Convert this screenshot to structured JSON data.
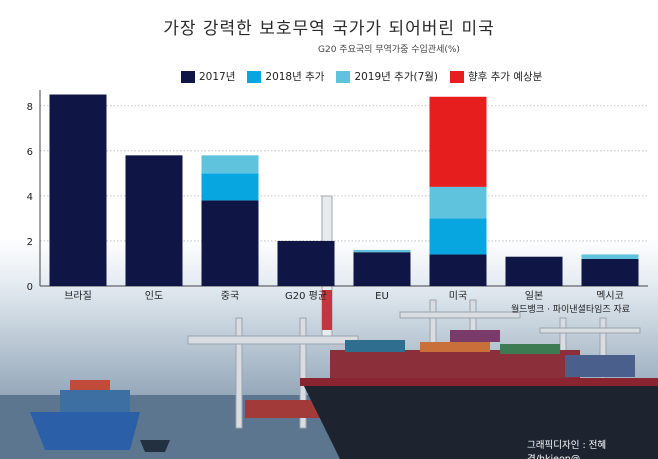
{
  "header": {
    "title": "가장 강력한 보호무역 국가가 되어버린 미국",
    "subtitle": "G20 주요국의 무역가중 수입관세(%)"
  },
  "footer": {
    "source": "월드뱅크 · 파이낸셜타임즈 자료",
    "credit": "그래픽디자인 : 전혜경/hkjeon@"
  },
  "colors": {
    "y2017": "#0f1646",
    "y2018": "#08a6e0",
    "y2019": "#5fc3de",
    "future": "#e61e1e"
  },
  "chart_data": {
    "type": "bar",
    "stacked": true,
    "categories": [
      "브라질",
      "인도",
      "중국",
      "G20 평균",
      "EU",
      "미국",
      "일본",
      "멕시코"
    ],
    "series": [
      {
        "name": "2017년",
        "color": "#0f1646",
        "values": [
          8.5,
          5.8,
          3.8,
          2.0,
          1.5,
          1.4,
          1.3,
          1.2
        ]
      },
      {
        "name": "2018년 추가",
        "color": "#08a6e0",
        "values": [
          0,
          0,
          1.2,
          0,
          0,
          1.6,
          0,
          0
        ]
      },
      {
        "name": "2019년 추가(7월)",
        "color": "#5fc3de",
        "values": [
          0,
          0,
          0.8,
          0,
          0.1,
          1.4,
          0,
          0.2
        ]
      },
      {
        "name": "향후 추가 예상분",
        "color": "#e61e1e",
        "values": [
          0,
          0,
          0,
          0,
          0,
          4.0,
          0,
          0
        ]
      }
    ],
    "yticks": [
      0,
      2,
      4,
      6,
      8
    ],
    "ylim": [
      0,
      8.7
    ],
    "grid": true,
    "legend": "top"
  }
}
